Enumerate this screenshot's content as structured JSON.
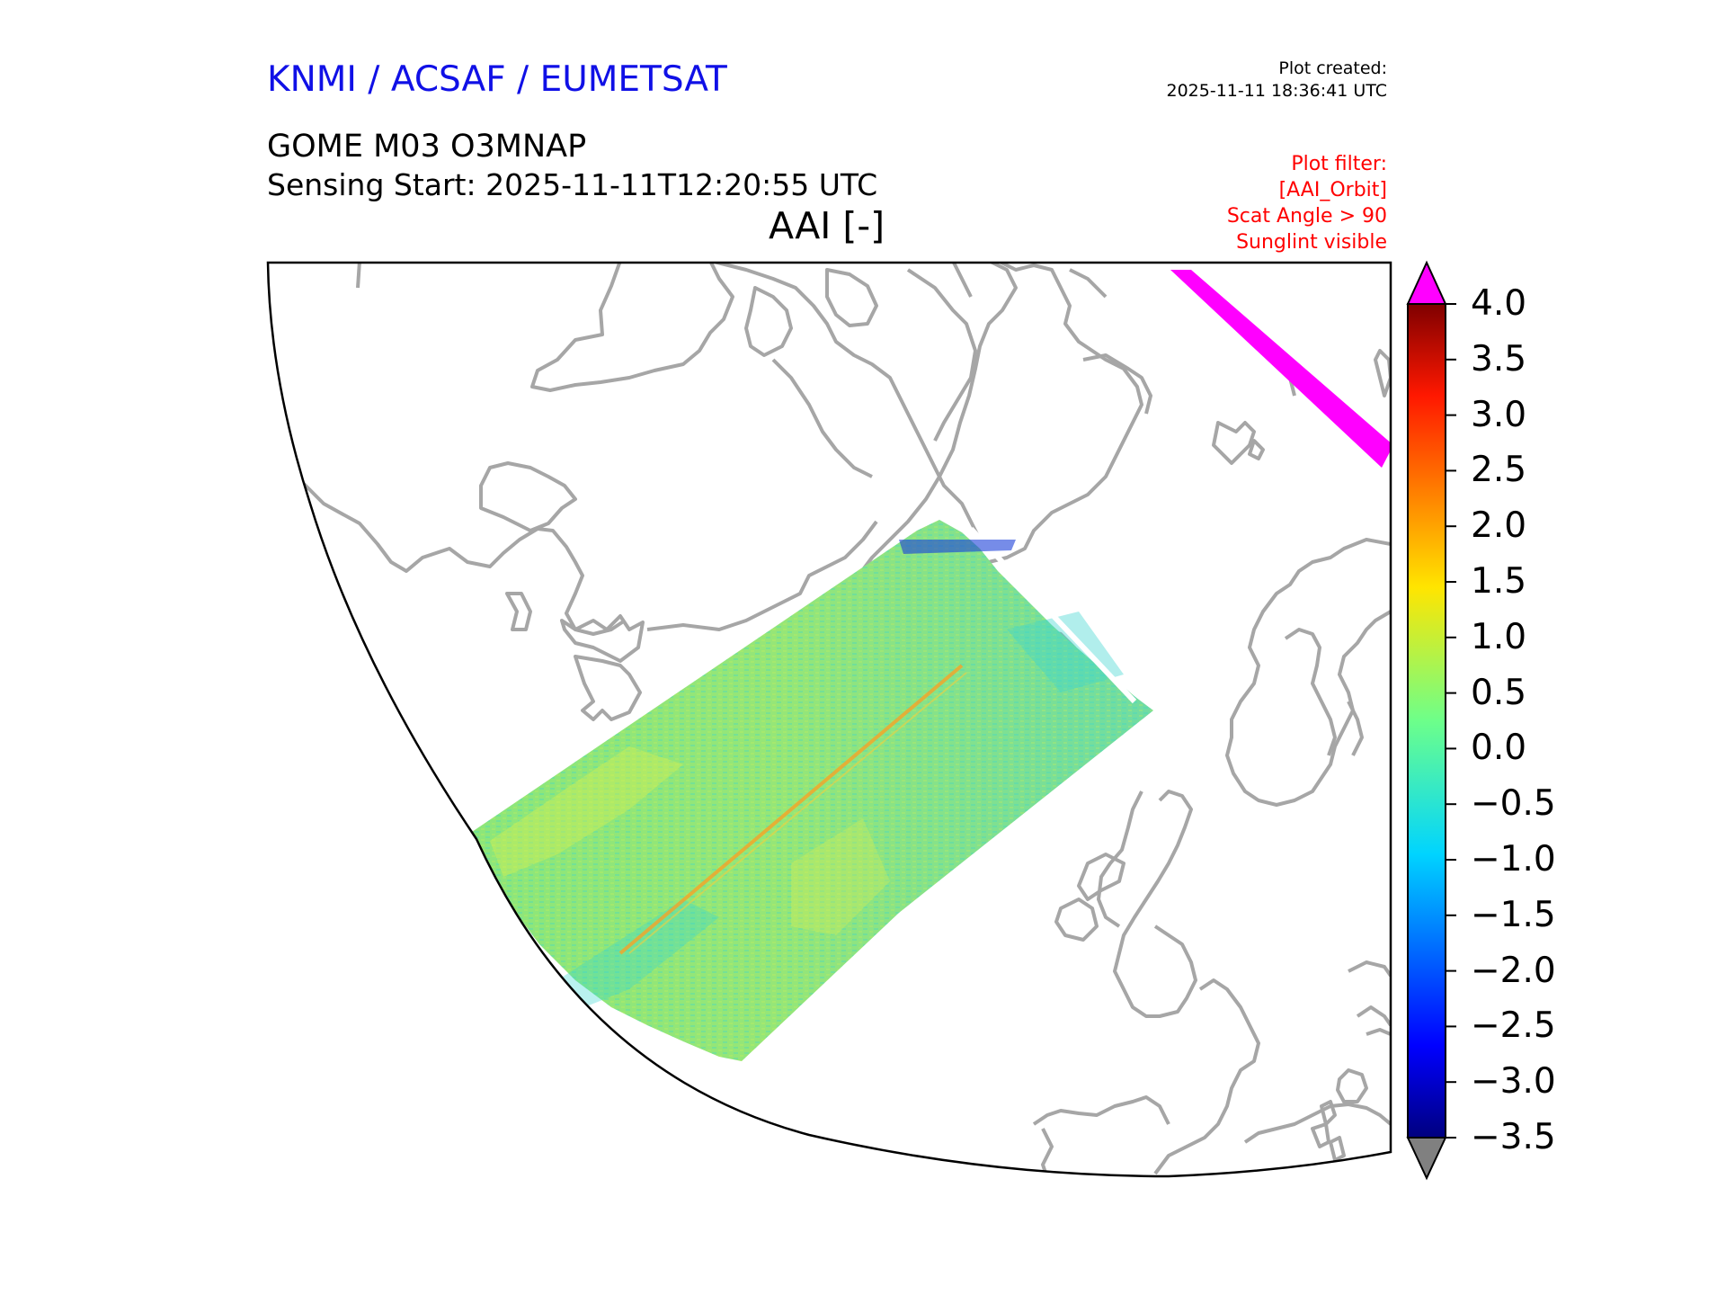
{
  "header": {
    "organization": "KNMI / ACSAF / EUMETSAT",
    "plot_created_label": "Plot created:",
    "plot_created_time": "2025-11-11 18:36:41 UTC",
    "product": "GOME M03 O3MNAP",
    "sensing_start": "Sensing Start: 2025-11-11T12:20:55 UTC",
    "variable": "AAI [-]"
  },
  "filter": {
    "title": "Plot filter:",
    "lines": [
      "[AAI_Orbit]",
      "Scat Angle > 90",
      "Sunglint visible"
    ]
  },
  "colorbar": {
    "ticks": [
      "4.0",
      "3.5",
      "3.0",
      "2.5",
      "2.0",
      "1.5",
      "1.0",
      "0.5",
      "0.0",
      "−0.5",
      "−1.0",
      "−1.5",
      "−2.0",
      "−2.5",
      "−3.0",
      "−3.5"
    ],
    "min": -3.5,
    "max": 4.0,
    "over_color": "#ff00ff",
    "under_color": "#808080"
  },
  "colors": {
    "title_blue": "#1010e6",
    "filter_red": "#ff0000",
    "coastline": "#a6a6a6"
  }
}
